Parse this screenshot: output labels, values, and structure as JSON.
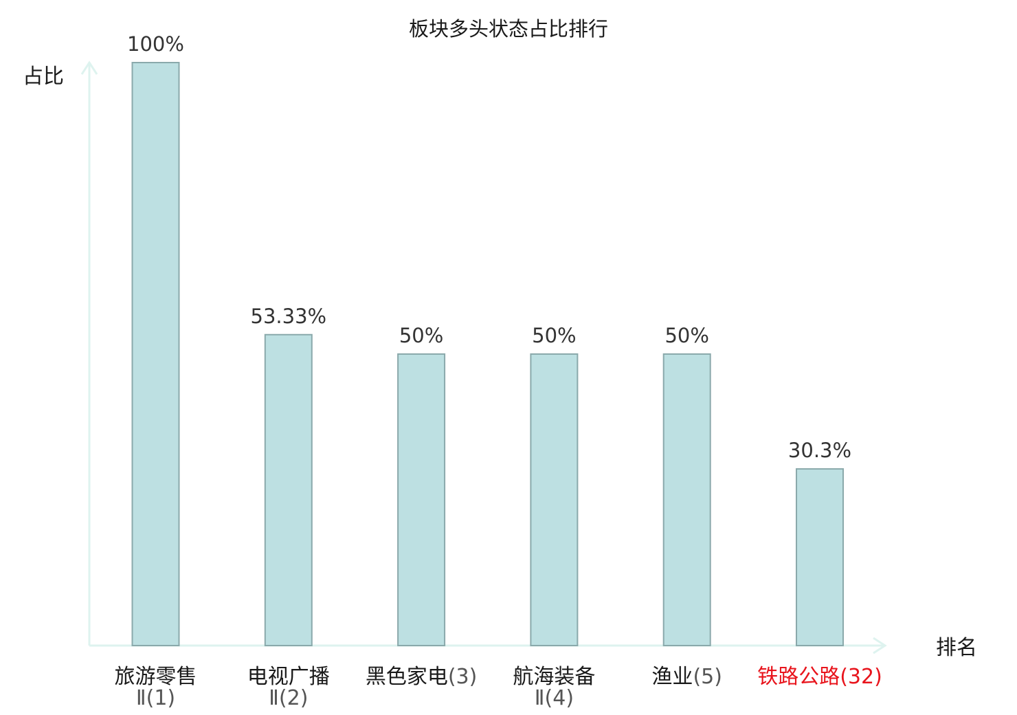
{
  "chart_data": {
    "type": "bar",
    "title": "板块多头状态占比排行",
    "xlabel": "排名",
    "ylabel": "占比",
    "ylim": [
      0,
      100
    ],
    "categories": [
      {
        "name": "旅游零售Ⅱ",
        "line1": "旅游零售",
        "line2": "Ⅱ(1)",
        "rank": 1,
        "highlight": false
      },
      {
        "name": "电视广播Ⅱ",
        "line1": "电视广播",
        "line2": "Ⅱ(2)",
        "rank": 2,
        "highlight": false
      },
      {
        "name": "黑色家电",
        "line1": "黑色家电(3)",
        "line2": "",
        "rank": 3,
        "highlight": false
      },
      {
        "name": "航海装备Ⅱ",
        "line1": "航海装备",
        "line2": "Ⅱ(4)",
        "rank": 4,
        "highlight": false
      },
      {
        "name": "渔业",
        "line1": "渔业(5)",
        "line2": "",
        "rank": 5,
        "highlight": false
      },
      {
        "name": "铁路公路",
        "line1": "铁路公路(32)",
        "line2": "",
        "rank": 32,
        "highlight": true
      }
    ],
    "values": [
      100,
      53.33,
      50,
      50,
      50,
      30.3
    ],
    "value_labels": [
      "100%",
      "53.33%",
      "50%",
      "50%",
      "50%",
      "30.3%"
    ],
    "legend": "none",
    "grid": false
  },
  "colors": {
    "bar_fill": "#bde0e2",
    "bar_stroke": "#8aa9ab",
    "axis": "#def3ef",
    "text": "#1a1a1a",
    "value_text": "#333333",
    "sub_text": "#555555",
    "highlight": "#e8141c"
  }
}
